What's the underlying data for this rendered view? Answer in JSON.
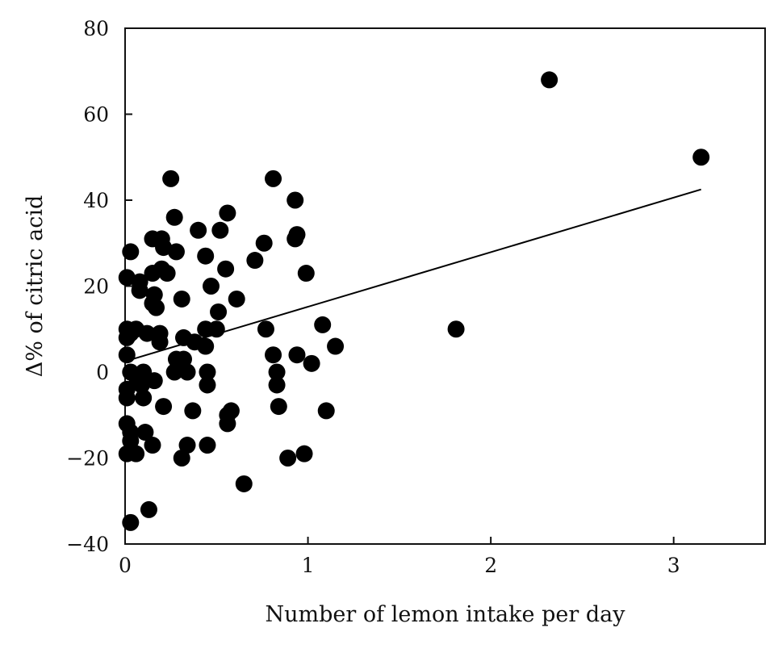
{
  "chart_data": {
    "type": "scatter",
    "title": "",
    "xlabel": "Number of lemon intake per day",
    "ylabel": "Δ% of citric acid",
    "xlim": [
      0,
      3.5
    ],
    "ylim": [
      -40,
      80
    ],
    "x_ticks": [
      "0",
      "1",
      "2",
      "3"
    ],
    "y_ticks": [
      "80",
      "60",
      "40",
      "20",
      "0",
      "−20",
      "−40"
    ],
    "x_tick_values": [
      0,
      1,
      2,
      3
    ],
    "y_tick_values": [
      80,
      60,
      40,
      20,
      0,
      -20,
      -40
    ],
    "grid": false,
    "legend": "none",
    "point_color": "#000000",
    "points": [
      [
        0.01,
        22
      ],
      [
        0.01,
        10
      ],
      [
        0.01,
        8
      ],
      [
        0.01,
        4
      ],
      [
        0.01,
        -4
      ],
      [
        0.01,
        -6
      ],
      [
        0.01,
        -12
      ],
      [
        0.01,
        -19
      ],
      [
        0.03,
        28
      ],
      [
        0.03,
        9
      ],
      [
        0.03,
        0
      ],
      [
        0.03,
        -14
      ],
      [
        0.03,
        -16
      ],
      [
        0.03,
        -35
      ],
      [
        0.06,
        10
      ],
      [
        0.06,
        -1
      ],
      [
        0.06,
        -19
      ],
      [
        0.08,
        21
      ],
      [
        0.08,
        19
      ],
      [
        0.09,
        -3
      ],
      [
        0.1,
        -6
      ],
      [
        0.1,
        0
      ],
      [
        0.11,
        -14
      ],
      [
        0.12,
        9
      ],
      [
        0.13,
        -32
      ],
      [
        0.15,
        31
      ],
      [
        0.15,
        23
      ],
      [
        0.15,
        16
      ],
      [
        0.15,
        -17
      ],
      [
        0.16,
        18
      ],
      [
        0.16,
        -2
      ],
      [
        0.17,
        15
      ],
      [
        0.19,
        9
      ],
      [
        0.19,
        7
      ],
      [
        0.2,
        24
      ],
      [
        0.2,
        31
      ],
      [
        0.21,
        -8
      ],
      [
        0.21,
        29
      ],
      [
        0.23,
        23
      ],
      [
        0.25,
        45
      ],
      [
        0.27,
        36
      ],
      [
        0.27,
        0
      ],
      [
        0.28,
        28
      ],
      [
        0.28,
        3
      ],
      [
        0.31,
        17
      ],
      [
        0.31,
        -20
      ],
      [
        0.32,
        8
      ],
      [
        0.32,
        3
      ],
      [
        0.34,
        -17
      ],
      [
        0.34,
        0
      ],
      [
        0.37,
        -9
      ],
      [
        0.38,
        7
      ],
      [
        0.4,
        33
      ],
      [
        0.44,
        27
      ],
      [
        0.44,
        10
      ],
      [
        0.44,
        6
      ],
      [
        0.45,
        0
      ],
      [
        0.45,
        -3
      ],
      [
        0.45,
        -17
      ],
      [
        0.47,
        20
      ],
      [
        0.5,
        10
      ],
      [
        0.51,
        14
      ],
      [
        0.52,
        33
      ],
      [
        0.55,
        24
      ],
      [
        0.56,
        37
      ],
      [
        0.56,
        -10
      ],
      [
        0.56,
        -12
      ],
      [
        0.58,
        -9
      ],
      [
        0.61,
        17
      ],
      [
        0.65,
        -26
      ],
      [
        0.71,
        26
      ],
      [
        0.76,
        30
      ],
      [
        0.77,
        10
      ],
      [
        0.81,
        45
      ],
      [
        0.81,
        4
      ],
      [
        0.83,
        0
      ],
      [
        0.83,
        -3
      ],
      [
        0.84,
        -8
      ],
      [
        0.89,
        -20
      ],
      [
        0.93,
        40
      ],
      [
        0.93,
        31
      ],
      [
        0.94,
        32
      ],
      [
        0.94,
        4
      ],
      [
        0.98,
        -19
      ],
      [
        0.99,
        23
      ],
      [
        1.02,
        2
      ],
      [
        1.08,
        11
      ],
      [
        1.1,
        -9
      ],
      [
        1.15,
        6
      ],
      [
        1.81,
        10
      ],
      [
        2.32,
        68
      ],
      [
        3.15,
        50
      ]
    ],
    "trendline": {
      "x": [
        0.0,
        3.15
      ],
      "y": [
        2.5,
        42.5
      ],
      "color": "#000000"
    }
  }
}
